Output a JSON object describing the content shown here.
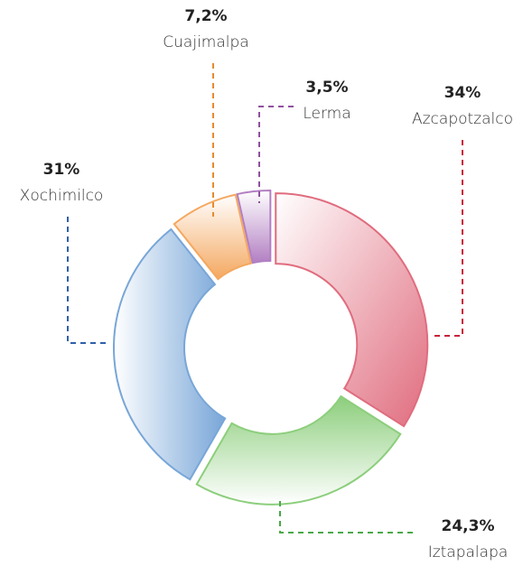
{
  "chart_data": {
    "type": "donut",
    "categories": [
      "Azcapotzalco",
      "Iztapalapa",
      "Xochimilco",
      "Cuajimalpa",
      "Lerma"
    ],
    "values": [
      34,
      24.3,
      31,
      7.2,
      3.5
    ],
    "value_labels": [
      "34%",
      "24,3%",
      "31%",
      "7,2%",
      "3,5%"
    ],
    "colors": [
      "#e06c7e",
      "#8cce7c",
      "#78a6d8",
      "#f4a860",
      "#b27fc2"
    ]
  }
}
